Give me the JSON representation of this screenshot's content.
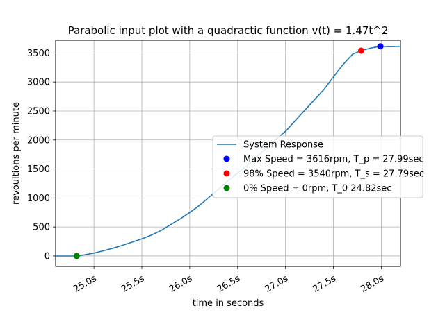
{
  "chart_data": {
    "type": "line",
    "title": "Parabolic input plot with a quadractic function v(t) = 1.47t^2",
    "xlabel": "time in seconds",
    "ylabel": "revoultions per minute",
    "xlim": [
      24.6,
      28.2
    ],
    "ylim": [
      -180,
      3720
    ],
    "grid": true,
    "x_ticks": [
      25.0,
      25.5,
      26.0,
      26.5,
      27.0,
      27.5,
      28.0
    ],
    "x_tick_labels": [
      "25.0s",
      "25.5s",
      "26.0s",
      "26.5s",
      "27.0s",
      "27.5s",
      "28.0s"
    ],
    "y_ticks": [
      0,
      500,
      1000,
      1500,
      2000,
      2500,
      3000,
      3500
    ],
    "y_tick_labels": [
      "0",
      "500",
      "1000",
      "1500",
      "2000",
      "2500",
      "3000",
      "3500"
    ],
    "legend_position": "center-right",
    "series": [
      {
        "name": "System Response",
        "kind": "line",
        "color": "#1f77b4",
        "x": [
          24.6,
          24.82,
          24.9,
          25.0,
          25.1,
          25.2,
          25.3,
          25.4,
          25.5,
          25.6,
          25.7,
          25.8,
          25.9,
          26.0,
          26.1,
          26.2,
          26.3,
          26.4,
          26.5,
          26.6,
          26.7,
          26.8,
          26.9,
          27.0,
          27.1,
          27.2,
          27.3,
          27.4,
          27.5,
          27.6,
          27.7,
          27.79,
          27.9,
          27.99,
          28.1,
          28.2
        ],
        "y": [
          0,
          0,
          20,
          50,
          90,
          135,
          185,
          240,
          295,
          360,
          440,
          540,
          640,
          750,
          870,
          1010,
          1150,
          1300,
          1430,
          1560,
          1710,
          1860,
          2010,
          2150,
          2330,
          2510,
          2690,
          2870,
          3090,
          3300,
          3480,
          3540,
          3590,
          3616,
          3610,
          3616
        ]
      },
      {
        "name": "Max Speed = 3616rpm, T_p = 27.99sec",
        "kind": "marker",
        "color": "#0000ff",
        "x": [
          27.99
        ],
        "y": [
          3616
        ]
      },
      {
        "name": "98% Speed = 3540rpm, T_s = 27.79sec",
        "kind": "marker",
        "color": "#ff0000",
        "x": [
          27.79
        ],
        "y": [
          3540
        ]
      },
      {
        "name": "0% Speed = 0rpm, T_0 24.82sec",
        "kind": "marker",
        "color": "#008000",
        "x": [
          24.82
        ],
        "y": [
          0
        ]
      }
    ]
  }
}
